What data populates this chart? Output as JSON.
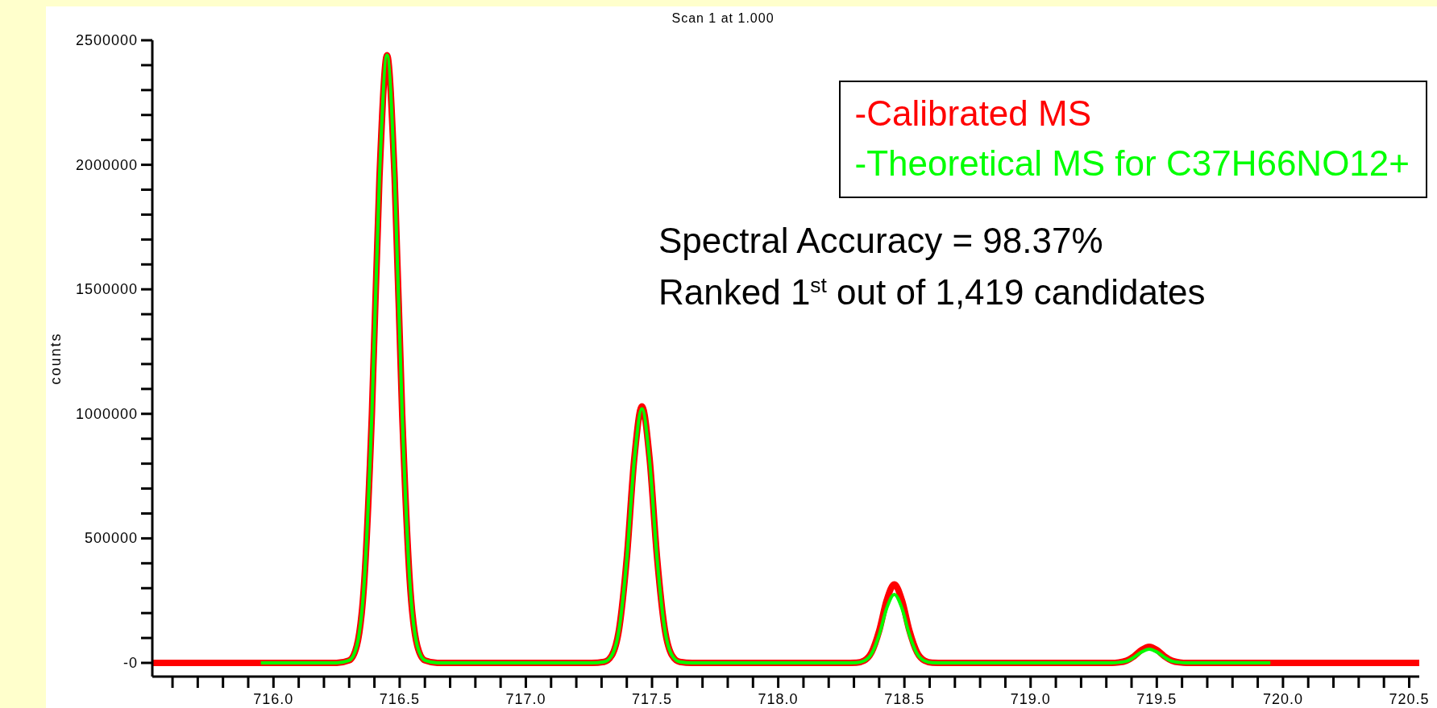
{
  "chart_data": {
    "type": "line",
    "title": "Scan 1 at 1.000",
    "ylabel": "counts",
    "xlim": [
      715.52,
      720.54
    ],
    "xticks": [
      {
        "value": 715.6,
        "label": null
      },
      {
        "value": 715.7,
        "label": null
      },
      {
        "value": 715.8,
        "label": null
      },
      {
        "value": 715.9,
        "label": null
      },
      {
        "value": 716.0,
        "label": "716.0"
      },
      {
        "value": 716.1,
        "label": null
      },
      {
        "value": 716.2,
        "label": null
      },
      {
        "value": 716.3,
        "label": null
      },
      {
        "value": 716.4,
        "label": null
      },
      {
        "value": 716.5,
        "label": "716.5"
      },
      {
        "value": 716.6,
        "label": null
      },
      {
        "value": 716.7,
        "label": null
      },
      {
        "value": 716.8,
        "label": null
      },
      {
        "value": 716.9,
        "label": null
      },
      {
        "value": 717.0,
        "label": "717.0"
      },
      {
        "value": 717.1,
        "label": null
      },
      {
        "value": 717.2,
        "label": null
      },
      {
        "value": 717.3,
        "label": null
      },
      {
        "value": 717.4,
        "label": null
      },
      {
        "value": 717.5,
        "label": "717.5"
      },
      {
        "value": 717.6,
        "label": null
      },
      {
        "value": 717.7,
        "label": null
      },
      {
        "value": 717.8,
        "label": null
      },
      {
        "value": 717.9,
        "label": null
      },
      {
        "value": 718.0,
        "label": "718.0"
      },
      {
        "value": 718.1,
        "label": null
      },
      {
        "value": 718.2,
        "label": null
      },
      {
        "value": 718.3,
        "label": null
      },
      {
        "value": 718.4,
        "label": null
      },
      {
        "value": 718.5,
        "label": "718.5"
      },
      {
        "value": 718.6,
        "label": null
      },
      {
        "value": 718.7,
        "label": null
      },
      {
        "value": 718.8,
        "label": null
      },
      {
        "value": 718.9,
        "label": null
      },
      {
        "value": 719.0,
        "label": "719.0"
      },
      {
        "value": 719.1,
        "label": null
      },
      {
        "value": 719.2,
        "label": null
      },
      {
        "value": 719.3,
        "label": null
      },
      {
        "value": 719.4,
        "label": null
      },
      {
        "value": 719.5,
        "label": "719.5"
      },
      {
        "value": 719.6,
        "label": null
      },
      {
        "value": 719.7,
        "label": null
      },
      {
        "value": 719.8,
        "label": null
      },
      {
        "value": 719.9,
        "label": null
      },
      {
        "value": 720.0,
        "label": "720.0"
      },
      {
        "value": 720.1,
        "label": null
      },
      {
        "value": 720.2,
        "label": null
      },
      {
        "value": 720.3,
        "label": null
      },
      {
        "value": 720.4,
        "label": null
      },
      {
        "value": 720.5,
        "label": "720.5"
      }
    ],
    "ylim": [
      -55000,
      2500000
    ],
    "yticks": [
      {
        "value": 0,
        "label": "-0"
      },
      {
        "value": 100000,
        "label": null
      },
      {
        "value": 200000,
        "label": null
      },
      {
        "value": 300000,
        "label": null
      },
      {
        "value": 400000,
        "label": null
      },
      500000,
      {
        "value": 600000,
        "label": null
      },
      {
        "value": 700000,
        "label": null
      },
      {
        "value": 800000,
        "label": null
      },
      {
        "value": 900000,
        "label": null
      },
      1000000,
      {
        "value": 1100000,
        "label": null
      },
      {
        "value": 1200000,
        "label": null
      },
      {
        "value": 1300000,
        "label": null
      },
      {
        "value": 1400000,
        "label": null
      },
      1500000,
      {
        "value": 1600000,
        "label": null
      },
      {
        "value": 1700000,
        "label": null
      },
      {
        "value": 1800000,
        "label": null
      },
      {
        "value": 1900000,
        "label": null
      },
      2000000,
      {
        "value": 2100000,
        "label": null
      },
      {
        "value": 2200000,
        "label": null
      },
      {
        "value": 2300000,
        "label": null
      },
      {
        "value": 2400000,
        "label": null
      },
      2500000
    ],
    "legend": "top right",
    "marker": "none",
    "line_style": "solid",
    "annotations": [
      "Spectral Accuracy = 98.37%",
      "Ranked 1$^{st}$ out of 1,419 candidates"
    ],
    "series": [
      {
        "name": "-Calibrated MS",
        "color": "#ff0000",
        "x": [
          715.52,
          715.8,
          716.0,
          716.25,
          716.3,
          716.33,
          716.36,
          716.39,
          716.42,
          716.45,
          716.48,
          716.51,
          716.54,
          716.57,
          716.6,
          716.65,
          717.26,
          717.31,
          717.34,
          717.37,
          717.4,
          717.43,
          717.46,
          717.49,
          717.52,
          717.55,
          717.58,
          717.61,
          717.66,
          718.26,
          718.31,
          718.34,
          718.37,
          718.4,
          718.43,
          718.46,
          718.49,
          718.52,
          718.55,
          718.58,
          718.61,
          718.66,
          719.27,
          719.32,
          719.35,
          719.38,
          719.41,
          719.44,
          719.47,
          719.5,
          719.53,
          719.56,
          719.59,
          719.62,
          719.67,
          720.0,
          720.54
        ],
        "values": [
          0,
          0,
          0,
          0,
          10000,
          68000,
          330000,
          1000000,
          1950000,
          2440000,
          1950000,
          1000000,
          330000,
          68000,
          10000,
          0,
          0,
          4000,
          29000,
          139000,
          422000,
          824000,
          1030000,
          824000,
          422000,
          139000,
          29000,
          4000,
          0,
          0,
          1000,
          9000,
          43000,
          129000,
          252000,
          315000,
          252000,
          129000,
          43000,
          9000,
          1000,
          0,
          0,
          0,
          2000,
          9000,
          27000,
          52000,
          65000,
          52000,
          27000,
          9000,
          2000,
          0,
          0,
          0,
          0
        ]
      },
      {
        "name": "-Theoretical MS for C37H66NO12+",
        "color": "#00ff00",
        "x": [
          715.95,
          716.25,
          716.3,
          716.33,
          716.36,
          716.39,
          716.42,
          716.45,
          716.48,
          716.51,
          716.54,
          716.57,
          716.6,
          716.65,
          717.26,
          717.31,
          717.34,
          717.37,
          717.4,
          717.43,
          717.46,
          717.49,
          717.52,
          717.55,
          717.58,
          717.61,
          717.66,
          718.26,
          718.31,
          718.34,
          718.37,
          718.4,
          718.43,
          718.46,
          718.49,
          718.52,
          718.55,
          718.58,
          718.61,
          718.66,
          719.27,
          719.32,
          719.35,
          719.38,
          719.41,
          719.44,
          719.47,
          719.5,
          719.53,
          719.56,
          719.59,
          719.62,
          719.67,
          719.95
        ],
        "values": [
          0,
          0,
          10000,
          68000,
          330000,
          1000000,
          1950000,
          2440000,
          1950000,
          1000000,
          330000,
          68000,
          10000,
          0,
          0,
          4000,
          29000,
          138000,
          418000,
          816000,
          1020000,
          816000,
          418000,
          138000,
          29000,
          4000,
          0,
          0,
          1000,
          8000,
          37000,
          113000,
          220000,
          275000,
          220000,
          113000,
          37000,
          8000,
          1000,
          0,
          0,
          0,
          2000,
          7000,
          23000,
          44000,
          55000,
          44000,
          23000,
          7000,
          2000,
          0,
          0,
          0
        ]
      }
    ]
  }
}
